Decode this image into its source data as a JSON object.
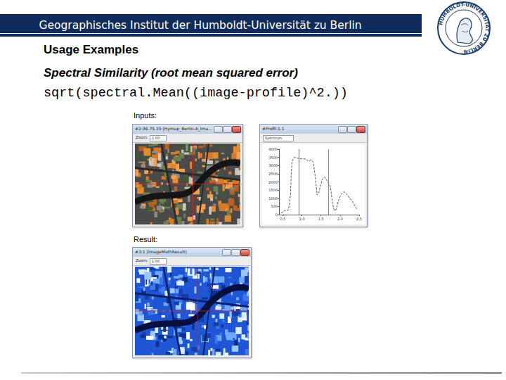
{
  "slide": {
    "header": "Geographisches Institut der Humboldt-Universität zu Berlin",
    "logo_text": "HUMBOLDT-UNIVERSITÄT ZU BERLIN",
    "heading": "Usage Examples",
    "subheading": "Spectral Similarity (root mean squared error)",
    "code": "sqrt(spectral.Mean((image-profile)^2.))",
    "inputs_label": "Inputs:",
    "result_label": "Result:",
    "windows": [
      {
        "title": "#2:36.75.15 [Hymap_Berlin-A_Ima...",
        "zoom_label": "Zoom:",
        "zoom": "1.00"
      },
      {
        "title": "#Profil:1.1",
        "dropdown": "Spectrum"
      },
      {
        "title": "#3:1 [ImageMathResult]",
        "zoom_label": "Zoom:",
        "zoom": "1.00"
      }
    ]
  },
  "chart_data": {
    "type": "line",
    "x": [
      0.45,
      0.5,
      0.55,
      0.6,
      0.65,
      0.7,
      0.72,
      0.75,
      0.8,
      0.9,
      1.0,
      1.1,
      1.15,
      1.2,
      1.25,
      1.3,
      1.35,
      1.4,
      1.45,
      1.5,
      1.55,
      1.6,
      1.65,
      1.7,
      1.75,
      1.8,
      1.85,
      1.9,
      1.95,
      2.0,
      2.05,
      2.1,
      2.15,
      2.2,
      2.25,
      2.3,
      2.35,
      2.4,
      2.45
    ],
    "values": [
      100,
      150,
      250,
      250,
      300,
      1200,
      2500,
      3300,
      3500,
      3450,
      3400,
      3400,
      3300,
      3300,
      3350,
      3200,
      2300,
      1200,
      1400,
      1900,
      2200,
      2300,
      2100,
      1900,
      1700,
      700,
      250,
      300,
      800,
      1100,
      1300,
      1400,
      1300,
      1200,
      1000,
      900,
      700,
      500,
      300
    ],
    "color": "#333333",
    "line_style": "dashed",
    "xlim": [
      0.4,
      2.5
    ],
    "xticks": [
      0.5,
      {
        "value": 1,
        "label": "1.0"
      },
      1.5,
      {
        "value": 2,
        "label": "2.0"
      },
      2.5
    ],
    "ylim": [
      0,
      4000
    ],
    "yticks": [
      0,
      500,
      1000,
      1500,
      2000,
      2500,
      3000,
      3500,
      4000
    ],
    "vertical_lines": [
      {
        "x": 0.92,
        "color": "#d83030"
      },
      {
        "x": 1.7,
        "color": "#3cc43c"
      }
    ],
    "grid": false
  }
}
